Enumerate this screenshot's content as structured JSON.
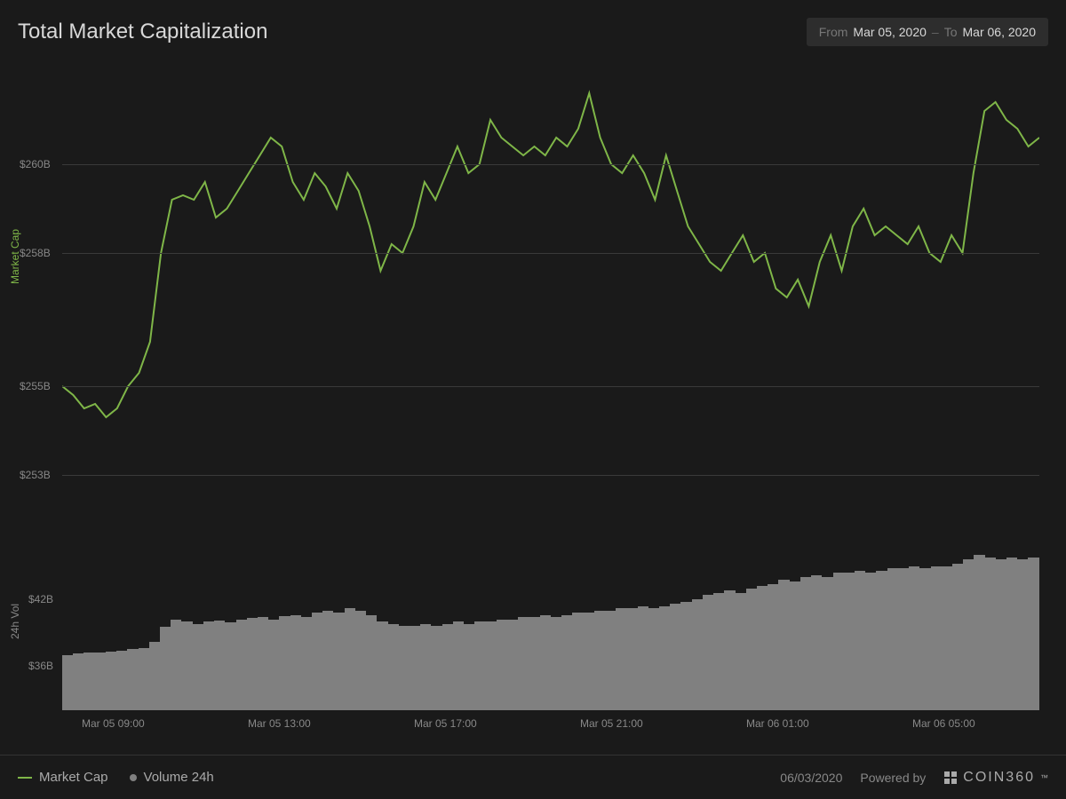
{
  "header": {
    "title": "Total Market Capitalization",
    "from_label": "From",
    "from_value": "Mar 05, 2020",
    "to_label": "To",
    "to_value": "Mar 06, 2020"
  },
  "line_chart": {
    "type": "line",
    "y_axis_label": "Market Cap",
    "line_color": "#7fb648",
    "line_width": 2,
    "background_color": "#1a1a1a",
    "grid_color": "#3a3a3a",
    "ylim": [
      252,
      262
    ],
    "y_ticks": [
      {
        "value": 260,
        "label": "$260B"
      },
      {
        "value": 258,
        "label": "$258B"
      },
      {
        "value": 255,
        "label": "$255B"
      },
      {
        "value": 253,
        "label": "$253B"
      }
    ],
    "values": [
      255.0,
      254.8,
      254.5,
      254.6,
      254.3,
      254.5,
      255.0,
      255.3,
      256.0,
      258.0,
      259.2,
      259.3,
      259.2,
      259.6,
      258.8,
      259.0,
      259.4,
      259.8,
      260.2,
      260.6,
      260.4,
      259.6,
      259.2,
      259.8,
      259.5,
      259.0,
      259.8,
      259.4,
      258.6,
      257.6,
      258.2,
      258.0,
      258.6,
      259.6,
      259.2,
      259.8,
      260.4,
      259.8,
      260.0,
      261.0,
      260.6,
      260.4,
      260.2,
      260.4,
      260.2,
      260.6,
      260.4,
      260.8,
      261.6,
      260.6,
      260.0,
      259.8,
      260.2,
      259.8,
      259.2,
      260.2,
      259.4,
      258.6,
      258.2,
      257.8,
      257.6,
      258.0,
      258.4,
      257.8,
      258.0,
      257.2,
      257.0,
      257.4,
      256.8,
      257.8,
      258.4,
      257.6,
      258.6,
      259.0,
      258.4,
      258.6,
      258.4,
      258.2,
      258.6,
      258.0,
      257.8,
      258.4,
      258.0,
      259.8,
      261.2,
      261.4,
      261.0,
      260.8,
      260.4,
      260.6
    ]
  },
  "volume_chart": {
    "type": "bar",
    "y_axis_label": "24h Vol",
    "bar_color": "#808080",
    "ylim": [
      32,
      48
    ],
    "y_ticks": [
      {
        "value": 42,
        "label": "$42B"
      },
      {
        "value": 36,
        "label": "$36B"
      }
    ],
    "values": [
      37.0,
      37.1,
      37.2,
      37.2,
      37.3,
      37.4,
      37.5,
      37.6,
      38.2,
      39.5,
      40.2,
      40.0,
      39.8,
      40.0,
      40.1,
      39.9,
      40.2,
      40.3,
      40.4,
      40.2,
      40.5,
      40.6,
      40.4,
      40.8,
      41.0,
      40.8,
      41.2,
      41.0,
      40.6,
      40.0,
      39.8,
      39.6,
      39.6,
      39.8,
      39.6,
      39.8,
      40.0,
      39.8,
      40.0,
      40.0,
      40.2,
      40.2,
      40.4,
      40.4,
      40.6,
      40.4,
      40.6,
      40.8,
      40.8,
      41.0,
      41.0,
      41.2,
      41.2,
      41.4,
      41.2,
      41.4,
      41.6,
      41.8,
      42.0,
      42.4,
      42.6,
      42.8,
      42.6,
      43.0,
      43.2,
      43.4,
      43.8,
      43.6,
      44.0,
      44.2,
      44.0,
      44.4,
      44.4,
      44.6,
      44.4,
      44.6,
      44.8,
      44.8,
      45.0,
      44.8,
      45.0,
      45.0,
      45.2,
      45.6,
      46.0,
      45.8,
      45.6,
      45.8,
      45.6,
      45.8
    ]
  },
  "x_axis": {
    "ticks": [
      {
        "pos": 0.02,
        "label": "Mar 05 09:00"
      },
      {
        "pos": 0.19,
        "label": "Mar 05 13:00"
      },
      {
        "pos": 0.36,
        "label": "Mar 05 17:00"
      },
      {
        "pos": 0.53,
        "label": "Mar 05 21:00"
      },
      {
        "pos": 0.7,
        "label": "Mar 06 01:00"
      },
      {
        "pos": 0.87,
        "label": "Mar 06 05:00"
      }
    ]
  },
  "legend": {
    "market_cap": {
      "label": "Market Cap",
      "color": "#7fb648"
    },
    "volume": {
      "label": "Volume 24h",
      "color": "#808080"
    }
  },
  "footer": {
    "date": "06/03/2020",
    "powered_by": "Powered by",
    "brand": "COIN360",
    "tm": "™"
  }
}
